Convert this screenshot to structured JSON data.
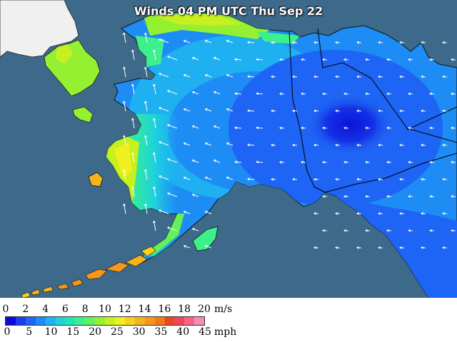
{
  "title": "Winds 04 PM UTC Thu Sep 22",
  "legend": {
    "ms_ticks": [
      "0",
      "2",
      "4",
      "6",
      "8",
      "10",
      "12",
      "14",
      "16",
      "18",
      "20"
    ],
    "ms_unit": "m/s",
    "mph_ticks": [
      "0",
      "5",
      "10",
      "15",
      "20",
      "25",
      "30",
      "35",
      "40",
      "45"
    ],
    "mph_unit": "mph",
    "colors": [
      "#0a0adc",
      "#1e3cf0",
      "#1e64f5",
      "#1e8cf5",
      "#1eb4f0",
      "#1ed2dc",
      "#1ee6b4",
      "#3cf08c",
      "#64f05a",
      "#96f032",
      "#c8f01e",
      "#f0f01e",
      "#f5d21e",
      "#f5b41e",
      "#f5961e",
      "#f0781e",
      "#eb461e",
      "#f0465a",
      "#f56482",
      "#f58cb4"
    ]
  },
  "colors": {
    "ocean": "#3d6a8a",
    "land_unpainted": "#f0f0f0",
    "border": "#000000",
    "arrow": "#ffffff"
  }
}
